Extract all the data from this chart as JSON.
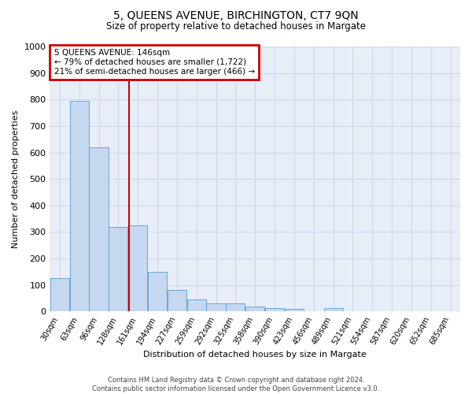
{
  "title": "5, QUEENS AVENUE, BIRCHINGTON, CT7 9QN",
  "subtitle": "Size of property relative to detached houses in Margate",
  "xlabel": "Distribution of detached houses by size in Margate",
  "ylabel": "Number of detached properties",
  "bar_values": [
    125,
    795,
    620,
    320,
    325,
    150,
    80,
    45,
    30,
    30,
    20,
    12,
    10,
    0,
    12,
    0,
    0,
    0,
    0,
    0,
    0
  ],
  "bar_labels": [
    "30sqm",
    "63sqm",
    "96sqm",
    "128sqm",
    "161sqm",
    "194sqm",
    "227sqm",
    "259sqm",
    "292sqm",
    "325sqm",
    "358sqm",
    "390sqm",
    "423sqm",
    "456sqm",
    "489sqm",
    "521sqm",
    "554sqm",
    "587sqm",
    "620sqm",
    "652sqm",
    "685sqm"
  ],
  "bar_color": "#c5d8ef",
  "bar_edge_color": "#5b9bd5",
  "vline_color": "#cc0000",
  "ylim": [
    0,
    1000
  ],
  "yticks": [
    0,
    100,
    200,
    300,
    400,
    500,
    600,
    700,
    800,
    900,
    1000
  ],
  "annotation_title": "5 QUEENS AVENUE: 146sqm",
  "annotation_line1": "← 79% of detached houses are smaller (1,722)",
  "annotation_line2": "21% of semi-detached houses are larger (466) →",
  "annotation_box_color": "#cc0000",
  "grid_color": "#cdd9ea",
  "background_color": "#e8eef8",
  "footer_line1": "Contains HM Land Registry data © Crown copyright and database right 2024.",
  "footer_line2": "Contains public sector information licensed under the Open Government Licence v3.0."
}
